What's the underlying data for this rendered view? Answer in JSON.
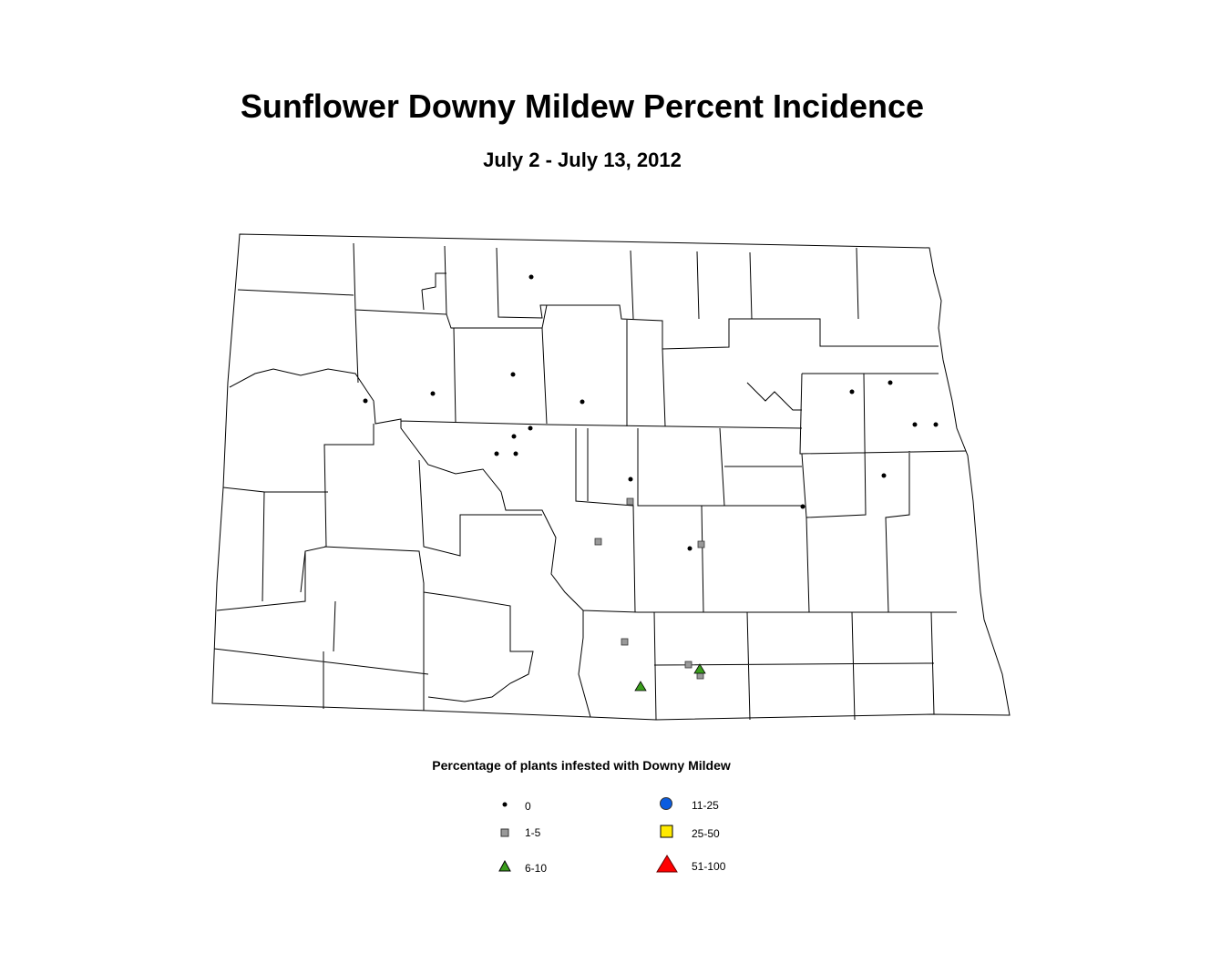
{
  "header": {
    "title": "Sunflower Downy Mildew Percent Incidence",
    "subtitle": "July 2 - July 13, 2012"
  },
  "legend": {
    "title": "Percentage of plants infested with Downy Mildew",
    "items": [
      {
        "label": "0"
      },
      {
        "label": "1-5"
      },
      {
        "label": "6-10"
      },
      {
        "label": "11-25"
      },
      {
        "label": "25-50"
      },
      {
        "label": "51-100"
      }
    ]
  }
}
